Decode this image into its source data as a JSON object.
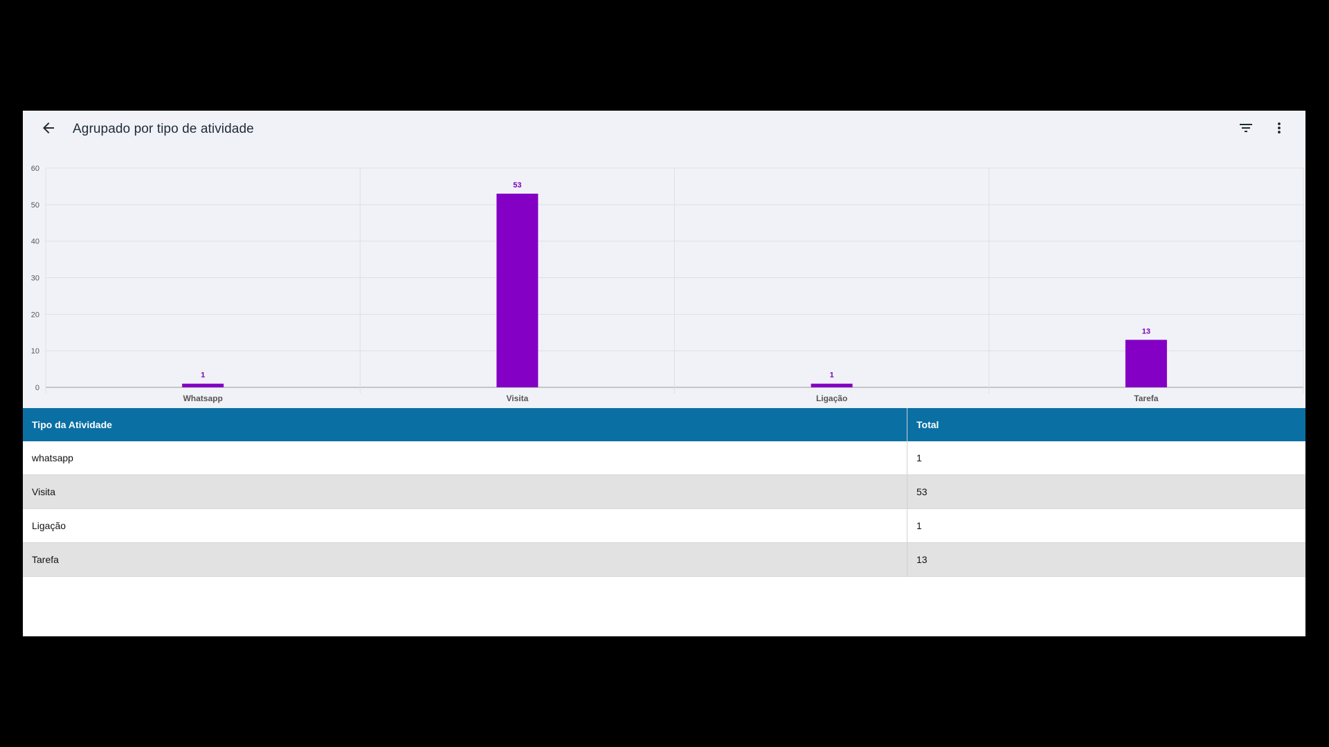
{
  "header": {
    "title": "Agrupado por tipo de atividade",
    "back_icon": "arrow-back-icon",
    "filter_icon": "filter-icon",
    "menu_icon": "more-vert-icon"
  },
  "chart_data": {
    "type": "bar",
    "categories": [
      "Whatsapp",
      "Visita",
      "Ligação",
      "Tarefa"
    ],
    "values": [
      1,
      53,
      1,
      13
    ],
    "ylim": [
      0,
      60
    ],
    "yticks": [
      0,
      10,
      20,
      30,
      40,
      50,
      60
    ],
    "grid": true,
    "data_labels": true,
    "bar_color": "#8300c4"
  },
  "table": {
    "headers": [
      "Tipo da Atividade",
      "Total"
    ],
    "rows": [
      [
        "whatsapp",
        "1"
      ],
      [
        "Visita",
        "53"
      ],
      [
        "Ligação",
        "1"
      ],
      [
        "Tarefa",
        "13"
      ]
    ],
    "header_color": "#0a6fa3"
  }
}
